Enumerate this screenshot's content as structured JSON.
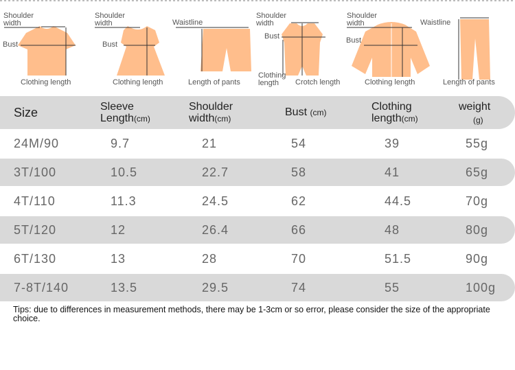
{
  "diagrams": {
    "labels": {
      "d1_shoulder": "Shoulder",
      "d1_width": "width",
      "d1_bust": "Bust",
      "d1_length": "Clothing length",
      "d2_shoulder": "Shoulder",
      "d2_width": "width",
      "d2_bust": "Bust",
      "d2_length": "Clothing length",
      "d3_waist": "Waistline",
      "d3_length": "Length of pants",
      "d4_shoulder": "Shoulder",
      "d4_width": "width",
      "d4_bust": "Bust",
      "d4_clothing": "Clothing",
      "d4_length": "length",
      "d4_crotch": "Crotch length",
      "d5_shoulder": "Shoulder",
      "d5_width": "width",
      "d5_bust": "Bust",
      "d5_length": "Clothing length",
      "d6_waist": "Waistline",
      "d6_length": "Length of pants"
    },
    "garment_color": "#ffbe8c"
  },
  "table": {
    "headers": {
      "size": "Size",
      "sleeve_line1": "Sleeve",
      "sleeve_line2": "Length",
      "sleeve_unit": "(cm)",
      "shoulder_line1": "Shoulder",
      "shoulder_line2": "width",
      "shoulder_unit": "(cm)",
      "bust": "Bust",
      "bust_unit": "(cm)",
      "clothing_line1": "Clothing",
      "clothing_line2": "length",
      "clothing_unit": "(cm)",
      "weight_line1": "weight",
      "weight_unit": "(g)"
    },
    "rows": [
      {
        "size": "24M/90",
        "sleeve": "9.7",
        "shoulder": "21",
        "bust": "54",
        "length": "39",
        "weight": "55g"
      },
      {
        "size": "3T/100",
        "sleeve": "10.5",
        "shoulder": "22.7",
        "bust": "58",
        "length": "41",
        "weight": "65g"
      },
      {
        "size": "4T/110",
        "sleeve": "11.3",
        "shoulder": "24.5",
        "bust": "62",
        "length": "44.5",
        "weight": "70g"
      },
      {
        "size": "5T/120",
        "sleeve": "12",
        "shoulder": "26.4",
        "bust": "66",
        "length": "48",
        "weight": "80g"
      },
      {
        "size": "6T/130",
        "sleeve": "13",
        "shoulder": "28",
        "bust": "70",
        "length": "51.5",
        "weight": "90g"
      },
      {
        "size": "7-8T/140",
        "sleeve": "13.5",
        "shoulder": "29.5",
        "bust": "74",
        "length": "55",
        "weight": "100g"
      }
    ],
    "shade_color": "#d9d9d9"
  },
  "tips": "Tips: due to differences in measurement methods, there may be 1-3cm or so error, please consider the size of the appropriate choice."
}
